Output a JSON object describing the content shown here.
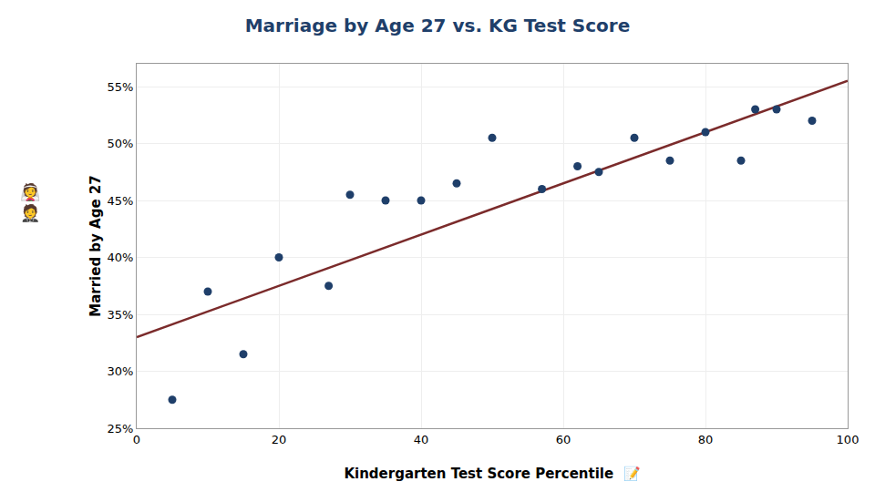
{
  "chart_data": {
    "type": "scatter",
    "title": "Marriage by Age 27 vs. KG Test Score",
    "xlabel": "Kindergarten Test Score Percentile  📝",
    "ylabel": "Married by Age 27",
    "annotations": [
      "👰\n🤵"
    ],
    "series": [
      {
        "type": "scatter",
        "marker": "circle",
        "color": "#1F3F6A",
        "x": [
          5,
          10,
          15,
          20,
          27,
          30,
          35,
          40,
          45,
          50,
          57,
          62,
          65,
          70,
          75,
          80,
          85,
          87,
          90,
          95
        ],
        "values": [
          0.275,
          0.37,
          0.315,
          0.4,
          0.375,
          0.455,
          0.45,
          0.45,
          0.465,
          0.505,
          0.46,
          0.48,
          0.475,
          0.505,
          0.485,
          0.51,
          0.485,
          0.53,
          0.53,
          0.52
        ]
      },
      {
        "type": "line",
        "line_style": "solid",
        "color": "#7B2B2B",
        "x": [
          0,
          100
        ],
        "values": [
          0.33,
          0.555
        ]
      }
    ],
    "xlim": [
      0,
      100
    ],
    "ylim": [
      0.25,
      0.57
    ],
    "xticks": [
      0,
      20,
      40,
      60,
      80,
      100
    ],
    "yticks": [
      {
        "value": 0.25,
        "label": "25%"
      },
      {
        "value": 0.3,
        "label": "30%"
      },
      {
        "value": 0.35,
        "label": "35%"
      },
      {
        "value": 0.4,
        "label": "40%"
      },
      {
        "value": 0.45,
        "label": "45%"
      },
      {
        "value": 0.5,
        "label": "50%"
      },
      {
        "value": 0.55,
        "label": "55%"
      }
    ],
    "grid": true
  }
}
